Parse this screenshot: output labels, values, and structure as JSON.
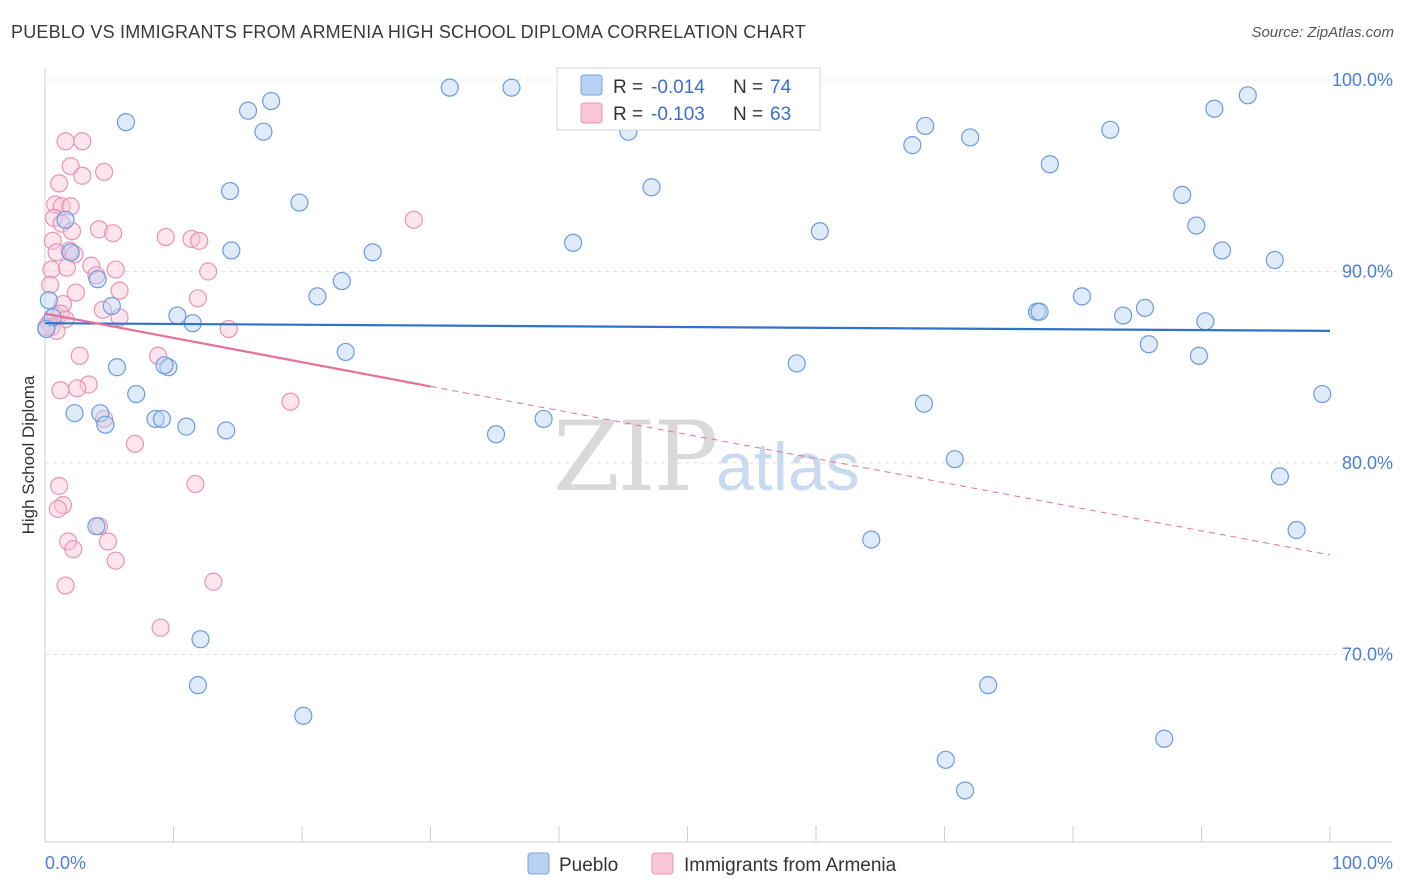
{
  "title": "PUEBLO VS IMMIGRANTS FROM ARMENIA HIGH SCHOOL DIPLOMA CORRELATION CHART",
  "source": "Source: ZipAtlas.com",
  "watermark": {
    "zip": "ZIP",
    "atlas": "atlas"
  },
  "chart_data": {
    "type": "scatter",
    "ylabel": "High School Diploma",
    "xlim": [
      0,
      100
    ],
    "ylim": [
      60.5,
      102
    ],
    "x_tick_labels": [
      "0.0%",
      "100.0%"
    ],
    "y_ticks": [
      70,
      80,
      90,
      100
    ],
    "y_tick_labels": [
      "70.0%",
      "80.0%",
      "90.0%",
      "100.0%"
    ],
    "grid": true,
    "legend_top": [
      {
        "r_label": "R =",
        "r_value": "-0.014",
        "n_label": "N =",
        "n_value": "74"
      },
      {
        "r_label": "R =",
        "r_value": "-0.103",
        "n_label": "N =",
        "n_value": "63"
      }
    ],
    "series": [
      {
        "name": "Pueblo",
        "color": "#9ec0ee",
        "line_color": "#2f72cc",
        "trend": {
          "x": [
            0,
            100
          ],
          "y": [
            87.3,
            86.9
          ]
        },
        "points": [
          [
            6.3,
            97.8
          ],
          [
            15.8,
            98.4
          ],
          [
            17.6,
            98.9
          ],
          [
            17.0,
            97.3
          ],
          [
            31.5,
            99.6
          ],
          [
            36.3,
            99.6
          ],
          [
            42.3,
            99.6
          ],
          [
            45.4,
            97.3
          ],
          [
            1.6,
            92.7
          ],
          [
            4.1,
            89.6
          ],
          [
            5.2,
            88.2
          ],
          [
            14.4,
            94.2
          ],
          [
            19.8,
            93.6
          ],
          [
            14.5,
            91.1
          ],
          [
            25.5,
            91.0
          ],
          [
            23.1,
            89.5
          ],
          [
            21.2,
            88.7
          ],
          [
            10.3,
            87.7
          ],
          [
            11.5,
            87.3
          ],
          [
            2.0,
            91.0
          ],
          [
            0.3,
            88.5
          ],
          [
            0.6,
            87.6
          ],
          [
            0.1,
            87.0
          ],
          [
            5.6,
            85.0
          ],
          [
            9.6,
            85.0
          ],
          [
            9.3,
            85.1
          ],
          [
            23.4,
            85.8
          ],
          [
            7.1,
            83.6
          ],
          [
            2.3,
            82.6
          ],
          [
            4.3,
            82.6
          ],
          [
            8.6,
            82.3
          ],
          [
            9.1,
            82.3
          ],
          [
            4.7,
            82.0
          ],
          [
            11.0,
            81.9
          ],
          [
            14.1,
            81.7
          ],
          [
            35.1,
            81.5
          ],
          [
            38.8,
            82.3
          ],
          [
            41.1,
            91.5
          ],
          [
            47.2,
            94.4
          ],
          [
            60.3,
            92.1
          ],
          [
            58.5,
            85.2
          ],
          [
            68.4,
            83.1
          ],
          [
            67.5,
            96.6
          ],
          [
            68.5,
            97.6
          ],
          [
            72.0,
            97.0
          ],
          [
            78.2,
            95.6
          ],
          [
            82.9,
            97.4
          ],
          [
            88.5,
            94.0
          ],
          [
            89.6,
            92.4
          ],
          [
            91.6,
            91.1
          ],
          [
            91.0,
            98.5
          ],
          [
            93.6,
            99.2
          ],
          [
            95.7,
            90.6
          ],
          [
            77.2,
            87.9
          ],
          [
            80.7,
            88.7
          ],
          [
            83.9,
            87.7
          ],
          [
            85.6,
            88.1
          ],
          [
            89.8,
            85.6
          ],
          [
            90.3,
            87.4
          ],
          [
            85.9,
            86.2
          ],
          [
            77.4,
            87.9
          ],
          [
            99.4,
            83.6
          ],
          [
            96.1,
            79.3
          ],
          [
            97.4,
            76.5
          ],
          [
            70.8,
            80.2
          ],
          [
            64.3,
            76.0
          ],
          [
            12.1,
            70.8
          ],
          [
            11.9,
            68.4
          ],
          [
            20.1,
            66.8
          ],
          [
            73.4,
            68.4
          ],
          [
            70.1,
            64.5
          ],
          [
            71.6,
            62.9
          ],
          [
            87.1,
            65.6
          ],
          [
            4.0,
            76.7
          ]
        ]
      },
      {
        "name": "Immigrants from Armenia",
        "color": "#f5afc8",
        "line_color": "#e7709b",
        "trend": {
          "x": [
            0,
            30
          ],
          "y": [
            87.8,
            84.0
          ]
        },
        "trend_dashed": {
          "x": [
            30,
            100
          ],
          "y": [
            84.0,
            75.2
          ]
        },
        "points": [
          [
            1.6,
            96.8
          ],
          [
            2.9,
            96.8
          ],
          [
            2.0,
            95.5
          ],
          [
            4.6,
            95.2
          ],
          [
            2.9,
            95.0
          ],
          [
            1.1,
            94.6
          ],
          [
            0.8,
            93.5
          ],
          [
            1.3,
            93.4
          ],
          [
            2.0,
            93.4
          ],
          [
            0.7,
            92.8
          ],
          [
            1.3,
            92.5
          ],
          [
            2.1,
            92.1
          ],
          [
            4.2,
            92.2
          ],
          [
            5.3,
            92.0
          ],
          [
            9.4,
            91.8
          ],
          [
            11.4,
            91.7
          ],
          [
            12.0,
            91.6
          ],
          [
            0.6,
            91.6
          ],
          [
            1.9,
            91.1
          ],
          [
            0.9,
            91.0
          ],
          [
            2.3,
            90.9
          ],
          [
            0.5,
            90.1
          ],
          [
            1.7,
            90.2
          ],
          [
            3.6,
            90.3
          ],
          [
            5.5,
            90.1
          ],
          [
            4.0,
            89.8
          ],
          [
            12.7,
            90.0
          ],
          [
            0.4,
            89.3
          ],
          [
            2.4,
            88.9
          ],
          [
            11.9,
            88.6
          ],
          [
            5.8,
            89.0
          ],
          [
            1.4,
            88.3
          ],
          [
            0.8,
            87.7
          ],
          [
            1.2,
            87.8
          ],
          [
            1.6,
            87.5
          ],
          [
            0.3,
            87.3
          ],
          [
            0.5,
            87.1
          ],
          [
            0.9,
            86.9
          ],
          [
            0.1,
            87.1
          ],
          [
            4.5,
            88.0
          ],
          [
            14.3,
            87.0
          ],
          [
            2.7,
            85.6
          ],
          [
            8.8,
            85.6
          ],
          [
            3.4,
            84.1
          ],
          [
            2.5,
            83.9
          ],
          [
            1.2,
            83.8
          ],
          [
            19.1,
            83.2
          ],
          [
            28.7,
            92.7
          ],
          [
            4.6,
            82.3
          ],
          [
            7.0,
            81.0
          ],
          [
            11.7,
            78.9
          ],
          [
            1.1,
            78.8
          ],
          [
            1.4,
            77.8
          ],
          [
            1.0,
            77.6
          ],
          [
            4.2,
            76.7
          ],
          [
            1.8,
            75.9
          ],
          [
            4.9,
            75.9
          ],
          [
            2.2,
            75.5
          ],
          [
            5.5,
            74.9
          ],
          [
            1.6,
            73.6
          ],
          [
            13.1,
            73.8
          ],
          [
            9.0,
            71.4
          ],
          [
            5.8,
            87.6
          ]
        ]
      }
    ]
  }
}
